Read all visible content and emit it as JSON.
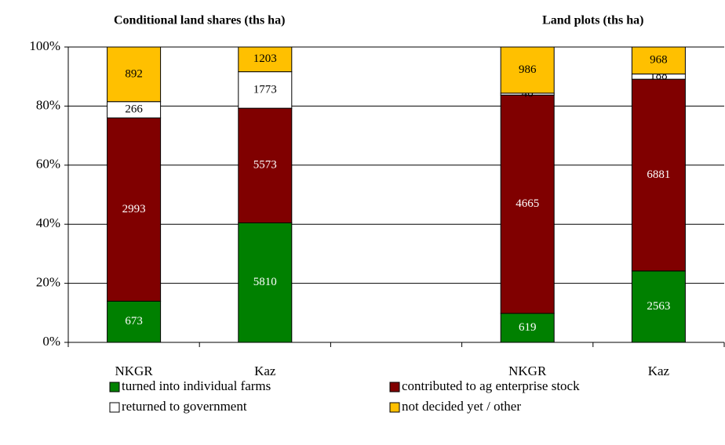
{
  "chart_data": {
    "type": "bar",
    "stacking": "percent",
    "group_titles": [
      "Conditional land shares (ths ha)",
      "Land plots (ths ha)"
    ],
    "categories": [
      "NKGR",
      "Kaz",
      null,
      "NKGR",
      "Kaz"
    ],
    "series": [
      {
        "name": "turned into individual farms",
        "color": "#008000",
        "label_color": "#ffffff",
        "values": [
          673,
          5810,
          null,
          619,
          2563
        ]
      },
      {
        "name": "contributed to ag enterprise stock",
        "color": "#800000",
        "label_color": "#ffffff",
        "values": [
          2993,
          5573,
          null,
          4665,
          6881
        ]
      },
      {
        "name": "returned to government",
        "color": "#ffffff",
        "label_color": "#000000",
        "values": [
          266,
          1773,
          null,
          40,
          188
        ]
      },
      {
        "name": "not decided yet / other",
        "color": "#ffc000",
        "label_color": "#000000",
        "values": [
          892,
          1203,
          null,
          986,
          968
        ]
      }
    ],
    "ylim": [
      0,
      100
    ],
    "yticks": [
      {
        "value": 0,
        "label": "0%"
      },
      {
        "value": 20,
        "label": "20%"
      },
      {
        "value": 40,
        "label": "40%"
      },
      {
        "value": 60,
        "label": "60%"
      },
      {
        "value": 80,
        "label": "80%"
      },
      {
        "value": 100,
        "label": "100%"
      }
    ],
    "grid": true
  }
}
